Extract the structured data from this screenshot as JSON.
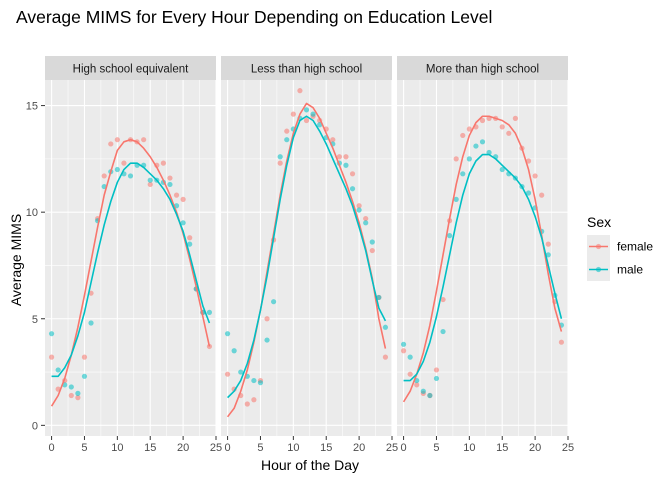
{
  "chart_data": {
    "type": "scatter",
    "title": "Average MIMS for Every Hour Depending on Education Level",
    "xlabel": "Hour of the Day",
    "ylabel": "Average MIMS",
    "xlim": [
      -1,
      25
    ],
    "ylim": [
      -0.5,
      16.2
    ],
    "x_ticks": [
      0,
      5,
      10,
      15,
      20,
      25
    ],
    "y_ticks": [
      0,
      5,
      10,
      15
    ],
    "grid": true,
    "legend": {
      "title": "Sex",
      "placement": "right",
      "entries": [
        {
          "name": "female",
          "color": "#F8766D"
        },
        {
          "name": "male",
          "color": "#00BFC4"
        }
      ]
    },
    "overlay": "loess smooth line per series",
    "facets": [
      {
        "label": "High school equivalent",
        "series": [
          {
            "name": "female",
            "color": "#F8766D",
            "x": [
              0,
              1,
              2,
              3,
              4,
              5,
              6,
              7,
              8,
              9,
              10,
              11,
              12,
              13,
              14,
              15,
              16,
              17,
              18,
              19,
              20,
              21,
              22,
              23,
              24
            ],
            "points": [
              3.2,
              1.7,
              2.1,
              1.4,
              1.3,
              3.2,
              6.2,
              9.7,
              11.7,
              13.2,
              13.4,
              12.3,
              13.4,
              13.3,
              13.4,
              11.3,
              12.2,
              12.3,
              11.6,
              10.8,
              10.6,
              8.8,
              6.4,
              5.3,
              3.7
            ],
            "smooth": [
              0.9,
              1.4,
              2.2,
              3.3,
              4.6,
              6.1,
              7.7,
              9.3,
              10.8,
              11.9,
              12.9,
              13.3,
              13.4,
              13.3,
              13.0,
              12.6,
              12.1,
              11.5,
              10.8,
              10.0,
              9.0,
              7.8,
              6.5,
              5.1,
              3.7
            ]
          },
          {
            "name": "male",
            "color": "#00BFC4",
            "x": [
              0,
              1,
              2,
              3,
              4,
              5,
              6,
              7,
              8,
              9,
              10,
              11,
              12,
              13,
              14,
              15,
              16,
              17,
              18,
              19,
              20,
              21,
              22,
              23,
              24
            ],
            "points": [
              4.3,
              2.6,
              1.9,
              1.8,
              1.5,
              2.3,
              4.8,
              9.6,
              11.2,
              11.9,
              12.0,
              11.8,
              11.7,
              12.2,
              12.2,
              11.5,
              11.5,
              11.4,
              11.3,
              10.3,
              9.5,
              8.5,
              6.4,
              5.3,
              5.3
            ],
            "smooth": [
              2.3,
              2.3,
              2.7,
              3.3,
              4.2,
              5.3,
              6.7,
              8.1,
              9.4,
              10.5,
              11.4,
              12.0,
              12.3,
              12.3,
              12.1,
              11.8,
              11.5,
              11.1,
              10.6,
              9.9,
              9.1,
              8.0,
              6.8,
              5.6,
              4.8
            ]
          }
        ]
      },
      {
        "label": "Less than high school",
        "series": [
          {
            "name": "female",
            "color": "#F8766D",
            "x": [
              0,
              1,
              2,
              3,
              4,
              5,
              6,
              7,
              8,
              9,
              10,
              11,
              12,
              13,
              14,
              15,
              16,
              17,
              18,
              19,
              20,
              21,
              22,
              23,
              24
            ],
            "points": [
              2.4,
              1.7,
              1.4,
              1.0,
              1.2,
              2.1,
              5.0,
              8.7,
              12.3,
              13.8,
              14.6,
              15.7,
              14.3,
              14.5,
              14.3,
              13.9,
              13.4,
              12.6,
              12.6,
              11.8,
              10.3,
              9.7,
              8.2,
              6.0,
              3.2
            ],
            "smooth": [
              0.4,
              0.8,
              1.6,
              2.6,
              3.9,
              5.4,
              7.2,
              9.0,
              10.8,
              12.4,
              13.7,
              14.6,
              15.1,
              14.9,
              14.4,
              13.7,
              13.0,
              12.2,
              11.4,
              10.5,
              9.5,
              8.3,
              6.9,
              5.0,
              3.6
            ]
          },
          {
            "name": "male",
            "color": "#00BFC4",
            "x": [
              0,
              1,
              2,
              3,
              4,
              5,
              6,
              7,
              8,
              9,
              10,
              11,
              12,
              13,
              14,
              15,
              16,
              17,
              18,
              19,
              20,
              21,
              22,
              23,
              24
            ],
            "points": [
              4.3,
              3.5,
              2.5,
              2.3,
              2.1,
              2.0,
              4.0,
              5.8,
              12.6,
              13.4,
              13.9,
              14.4,
              14.8,
              14.6,
              14.1,
              13.5,
              13.2,
              12.3,
              12.2,
              11.1,
              10.1,
              9.5,
              8.6,
              6.0,
              4.6
            ],
            "smooth": [
              1.3,
              1.6,
              2.1,
              2.9,
              4.0,
              5.4,
              7.0,
              8.8,
              10.6,
              12.2,
              13.5,
              14.3,
              14.5,
              14.3,
              13.8,
              13.2,
              12.5,
              11.8,
              11.1,
              10.3,
              9.3,
              8.2,
              6.8,
              5.5,
              4.9
            ]
          }
        ]
      },
      {
        "label": "More than high school",
        "series": [
          {
            "name": "female",
            "color": "#F8766D",
            "x": [
              0,
              1,
              2,
              3,
              4,
              5,
              6,
              7,
              8,
              9,
              10,
              11,
              12,
              13,
              14,
              15,
              16,
              17,
              18,
              19,
              20,
              21,
              22,
              23,
              24
            ],
            "points": [
              3.5,
              2.4,
              1.9,
              1.5,
              1.4,
              2.6,
              5.9,
              9.6,
              12.5,
              13.6,
              13.9,
              14.0,
              14.3,
              14.4,
              14.4,
              14.0,
              13.7,
              14.4,
              13.0,
              12.4,
              11.7,
              10.8,
              8.5,
              5.8,
              3.9
            ],
            "smooth": [
              1.1,
              1.6,
              2.4,
              3.4,
              4.7,
              6.3,
              8.0,
              9.7,
              11.3,
              12.6,
              13.6,
              14.2,
              14.5,
              14.5,
              14.4,
              14.3,
              14.1,
              13.7,
              13.0,
              12.0,
              10.6,
              8.9,
              7.1,
              5.5,
              4.4
            ]
          },
          {
            "name": "male",
            "color": "#00BFC4",
            "x": [
              0,
              1,
              2,
              3,
              4,
              5,
              6,
              7,
              8,
              9,
              10,
              11,
              12,
              13,
              14,
              15,
              16,
              17,
              18,
              19,
              20,
              21,
              22,
              23,
              24
            ],
            "points": [
              3.8,
              3.2,
              2.1,
              1.6,
              1.4,
              2.2,
              4.4,
              8.9,
              10.6,
              11.8,
              12.5,
              13.1,
              13.3,
              12.8,
              12.6,
              12.0,
              11.8,
              11.6,
              11.2,
              10.9,
              10.2,
              9.1,
              8.0,
              6.1,
              4.7
            ],
            "smooth": [
              2.1,
              2.1,
              2.4,
              3.0,
              3.9,
              5.1,
              6.5,
              8.0,
              9.5,
              10.8,
              11.8,
              12.4,
              12.7,
              12.7,
              12.5,
              12.2,
              11.9,
              11.6,
              11.2,
              10.6,
              9.8,
              8.8,
              7.5,
              6.2,
              5.0
            ]
          }
        ]
      }
    ]
  }
}
